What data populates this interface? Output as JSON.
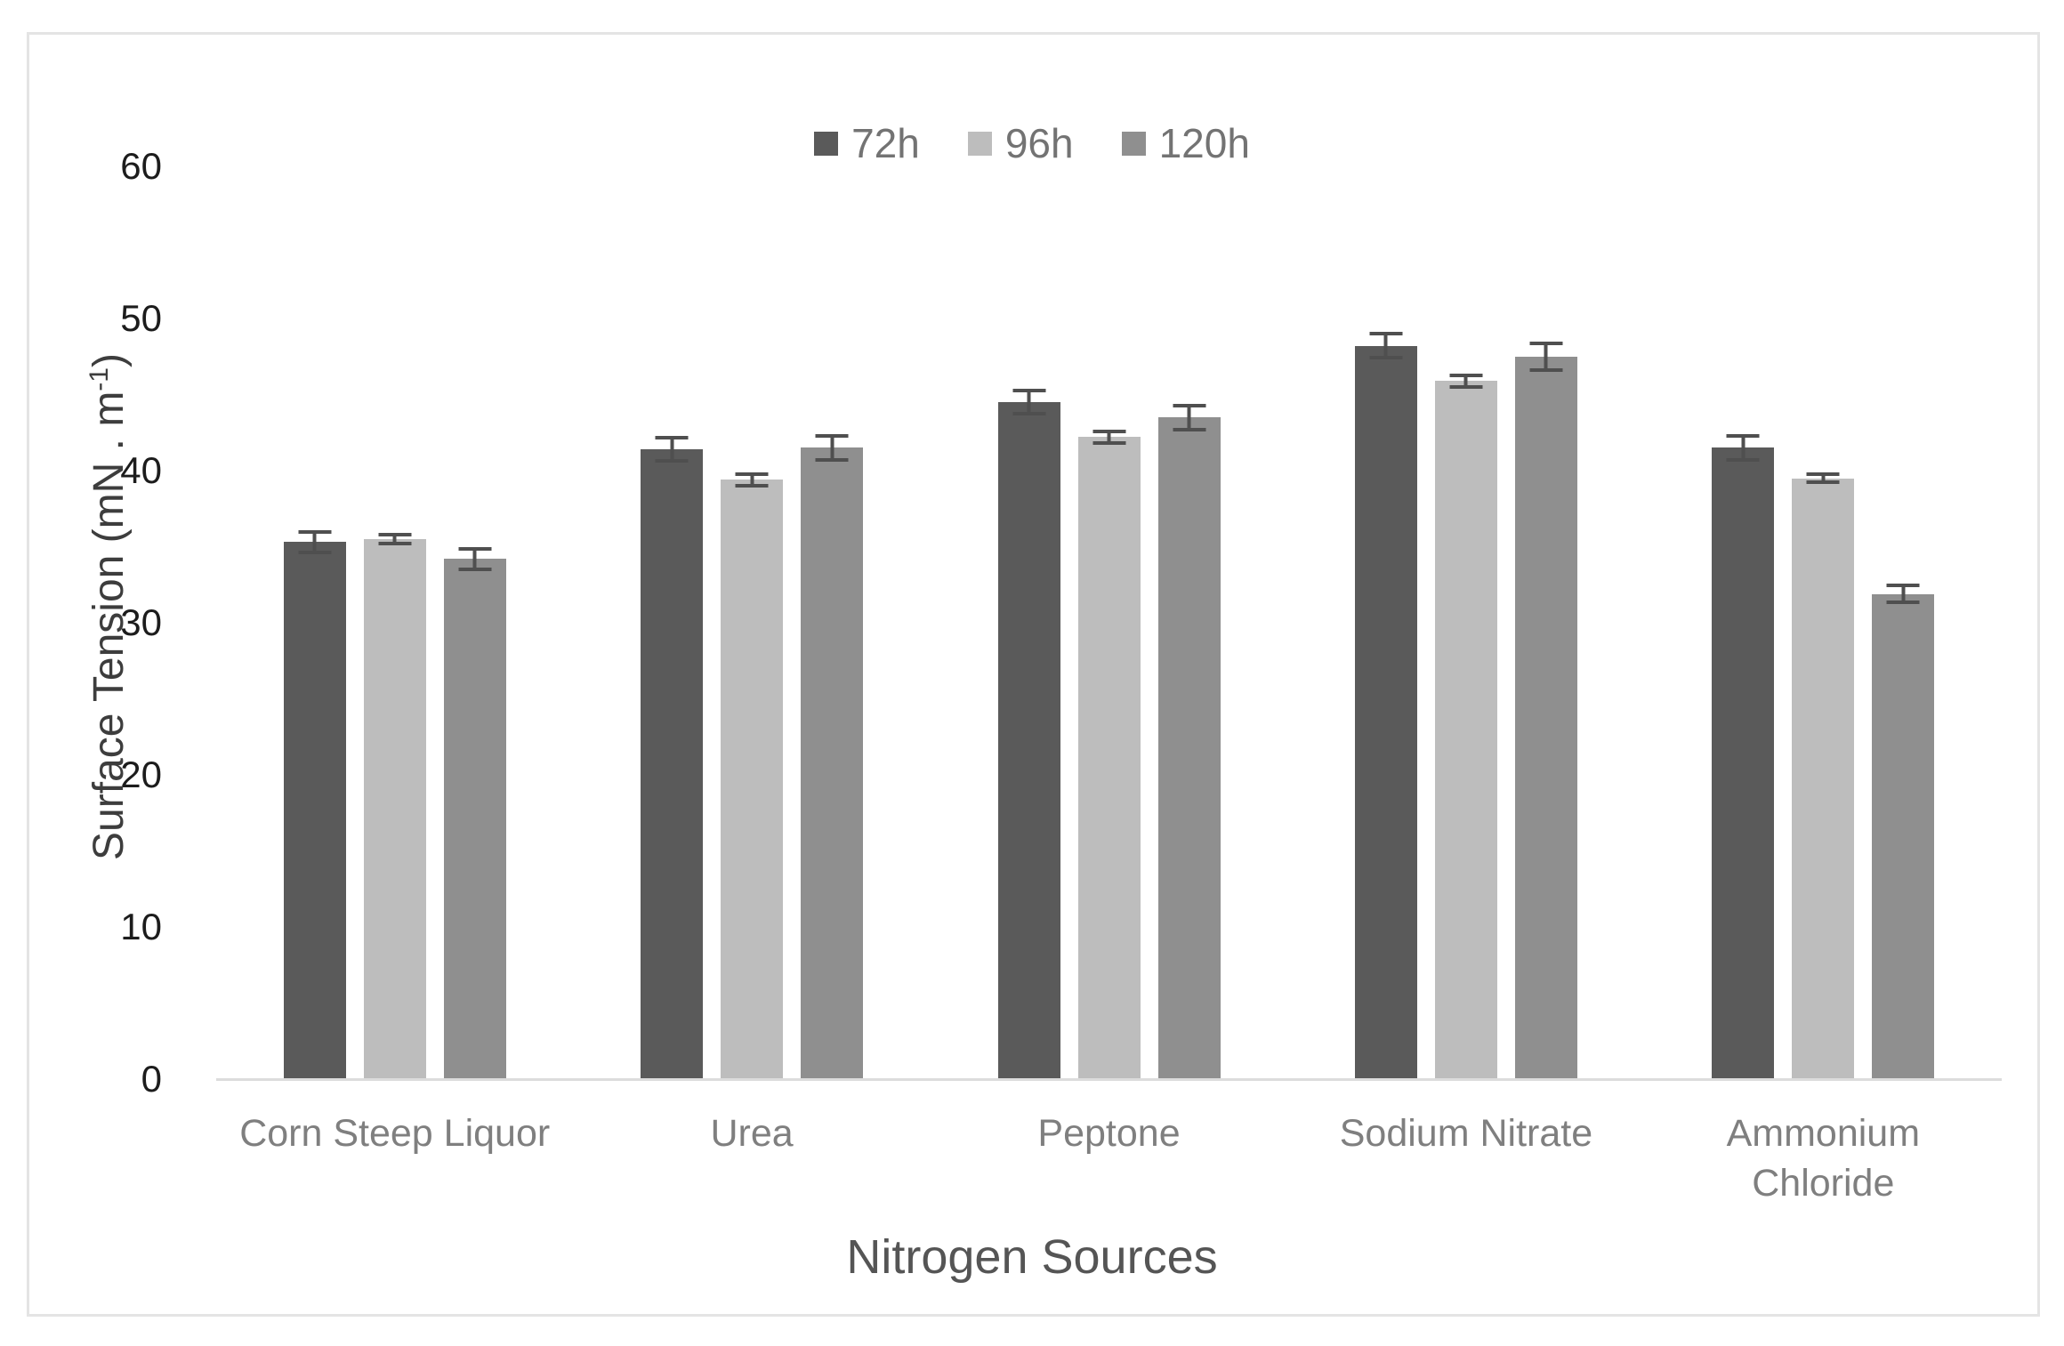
{
  "frame": {
    "background": "#ffffff",
    "border_color": "#e4e4e4"
  },
  "axis": {
    "line_color": "#dcdcdc",
    "tick_color": "#1c1c1c",
    "category_color": "#7f7f7f",
    "error_bar_color": "#4f4f4f"
  },
  "xlabel": "Nitrogen Sources",
  "ylabel_main": "Surface Tension (mN . m",
  "ylabel_sup": "-1",
  "ylabel_end": ")",
  "chart_data": {
    "type": "bar",
    "title": "",
    "xlabel": "Nitrogen Sources",
    "ylabel": "Surface Tension (mN . m⁻¹)",
    "categories": [
      "Corn Steep Liquor",
      "Urea",
      "Peptone",
      "Sodium Nitrate",
      "Ammonium Chloride"
    ],
    "series": [
      {
        "name": "72h",
        "color": "#5a5a5a",
        "values": [
          35.3,
          41.4,
          44.5,
          48.2,
          41.5
        ],
        "errors": [
          0.8,
          0.9,
          0.9,
          0.9,
          0.9
        ]
      },
      {
        "name": "96h",
        "color": "#bdbdbd",
        "values": [
          35.5,
          39.4,
          42.2,
          45.9,
          39.5
        ],
        "errors": [
          0.4,
          0.5,
          0.5,
          0.5,
          0.4
        ]
      },
      {
        "name": "120h",
        "color": "#8f8f8f",
        "values": [
          34.2,
          41.5,
          43.5,
          47.5,
          31.9
        ],
        "errors": [
          0.8,
          0.9,
          0.9,
          1.0,
          0.7
        ]
      }
    ],
    "ylim": [
      0,
      60
    ],
    "yticks": [
      0,
      10,
      20,
      30,
      40,
      50,
      60
    ],
    "grid": false,
    "legend_position": "top-center",
    "error_bars": true
  }
}
